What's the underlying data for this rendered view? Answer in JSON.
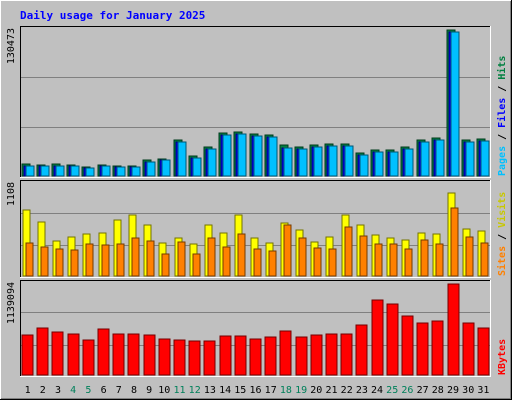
{
  "chart_data": {
    "type": "bar",
    "title": "Daily usage for January 2025",
    "categories": [
      "1",
      "2",
      "3",
      "4",
      "5",
      "6",
      "7",
      "8",
      "9",
      "10",
      "11",
      "12",
      "13",
      "14",
      "15",
      "16",
      "17",
      "18",
      "19",
      "20",
      "21",
      "22",
      "23",
      "24",
      "25",
      "26",
      "27",
      "28",
      "29",
      "30",
      "31"
    ],
    "weekend_days": [
      "4",
      "5",
      "11",
      "12",
      "18",
      "19",
      "25",
      "26"
    ],
    "panels": [
      {
        "name": "hits-files-pages",
        "ymax_label": "130473",
        "ylim": [
          0,
          130473
        ],
        "grid": true,
        "series": [
          {
            "name": "Hits",
            "color": "#008040",
            "values": [
              10500,
              10200,
              10400,
              9600,
              8300,
              9800,
              9200,
              8800,
              14000,
              15600,
              32500,
              17500,
              25800,
              38700,
              39500,
              37900,
              36300,
              27400,
              25600,
              27700,
              28900,
              28900,
              20200,
              22900,
              23000,
              25600,
              32400,
              34200,
              130473,
              32500,
              32900
            ]
          },
          {
            "name": "Files",
            "color": "#0000ff",
            "values": [
              9300,
              9000,
              9100,
              8500,
              7500,
              8700,
              8300,
              8000,
              12700,
              14200,
              30300,
              16100,
              24000,
              36700,
              37600,
              36000,
              34500,
              25400,
              23800,
              25800,
              27000,
              26900,
              18700,
              21300,
              21500,
              23800,
              30500,
              32300,
              128500,
              30500,
              31000
            ]
          },
          {
            "name": "Pages",
            "color": "#00c0ff",
            "values": [
              9300,
              9000,
              9100,
              8500,
              7500,
              8700,
              8300,
              8000,
              12700,
              14200,
              30300,
              16100,
              24000,
              36700,
              37600,
              36000,
              34500,
              25400,
              23800,
              25800,
              27000,
              26900,
              18700,
              21300,
              21500,
              23800,
              30500,
              32300,
              128500,
              30500,
              31000
            ]
          }
        ]
      },
      {
        "name": "visits-sites",
        "ymax_label": "1108",
        "ylim": [
          0,
          1108
        ],
        "grid": true,
        "series": [
          {
            "name": "Visits",
            "color": "#ffff00",
            "values": [
              790,
              650,
              420,
              470,
              510,
              520,
              670,
              730,
              610,
              400,
              460,
              380,
              620,
              520,
              730,
              460,
              400,
              640,
              560,
              410,
              470,
              740,
              610,
              490,
              460,
              430,
              520,
              510,
              1000,
              570,
              540
            ]
          },
          {
            "name": "Sites",
            "color": "#ff8000",
            "values": [
              400,
              350,
              330,
              310,
              390,
              370,
              380,
              460,
              420,
              260,
              410,
              260,
              460,
              350,
              500,
              320,
              300,
              610,
              460,
              340,
              320,
              590,
              480,
              380,
              390,
              330,
              430,
              380,
              820,
              470,
              400
            ]
          }
        ]
      },
      {
        "name": "kbytes",
        "ymax_label": "1139094",
        "ylim": [
          0,
          1139094
        ],
        "grid": true,
        "series": [
          {
            "name": "KBytes",
            "color": "#ff0000",
            "values": [
              505000,
              585000,
              535000,
              510000,
              440000,
              570000,
              510000,
              508000,
              505000,
              450000,
              435000,
              420000,
              430000,
              490000,
              490000,
              450000,
              480000,
              555000,
              480000,
              495000,
              515000,
              510000,
              630000,
              940000,
              885000,
              740000,
              650000,
              680000,
              1139094,
              645000,
              585000
            ]
          }
        ]
      }
    ],
    "legend_side": "right"
  }
}
